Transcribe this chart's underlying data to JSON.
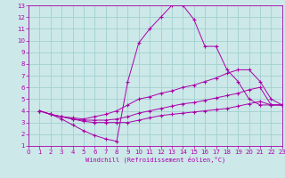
{
  "xlabel": "Windchill (Refroidissement éolien,°C)",
  "xlim": [
    0,
    23
  ],
  "ylim": [
    1,
    13
  ],
  "xticks": [
    0,
    1,
    2,
    3,
    4,
    5,
    6,
    7,
    8,
    9,
    10,
    11,
    12,
    13,
    14,
    15,
    16,
    17,
    18,
    19,
    20,
    21,
    22,
    23
  ],
  "yticks": [
    1,
    2,
    3,
    4,
    5,
    6,
    7,
    8,
    9,
    10,
    11,
    12,
    13
  ],
  "bg_color": "#cce8e8",
  "line_color": "#aa00aa",
  "grid_color": "#99cccc",
  "lines": [
    {
      "x": [
        1,
        2,
        3,
        4,
        5,
        6,
        7,
        8,
        9,
        10,
        11,
        12,
        13,
        14,
        15,
        16,
        17,
        18,
        19,
        20,
        21,
        22,
        23
      ],
      "y": [
        4.0,
        3.7,
        3.3,
        2.8,
        2.3,
        1.9,
        1.6,
        1.4,
        6.5,
        9.8,
        11.0,
        12.0,
        13.0,
        13.0,
        11.8,
        9.5,
        9.5,
        7.5,
        6.5,
        5.0,
        4.5,
        4.5,
        4.5
      ]
    },
    {
      "x": [
        1,
        2,
        3,
        4,
        5,
        6,
        7,
        8,
        9,
        10,
        11,
        12,
        13,
        14,
        15,
        16,
        17,
        18,
        19,
        20,
        21,
        22,
        23
      ],
      "y": [
        4.0,
        3.7,
        3.5,
        3.4,
        3.3,
        3.5,
        3.7,
        4.0,
        4.5,
        5.0,
        5.2,
        5.5,
        5.7,
        6.0,
        6.2,
        6.5,
        6.8,
        7.2,
        7.5,
        7.5,
        6.5,
        5.0,
        4.5
      ]
    },
    {
      "x": [
        1,
        2,
        3,
        4,
        5,
        6,
        7,
        8,
        9,
        10,
        11,
        12,
        13,
        14,
        15,
        16,
        17,
        18,
        19,
        20,
        21,
        22,
        23
      ],
      "y": [
        4.0,
        3.7,
        3.5,
        3.3,
        3.2,
        3.2,
        3.2,
        3.3,
        3.5,
        3.8,
        4.0,
        4.2,
        4.4,
        4.6,
        4.7,
        4.9,
        5.1,
        5.3,
        5.5,
        5.8,
        6.0,
        4.5,
        4.5
      ]
    },
    {
      "x": [
        1,
        2,
        3,
        4,
        5,
        6,
        7,
        8,
        9,
        10,
        11,
        12,
        13,
        14,
        15,
        16,
        17,
        18,
        19,
        20,
        21,
        22,
        23
      ],
      "y": [
        4.0,
        3.7,
        3.5,
        3.3,
        3.1,
        3.0,
        3.0,
        3.0,
        3.0,
        3.2,
        3.4,
        3.6,
        3.7,
        3.8,
        3.9,
        4.0,
        4.1,
        4.2,
        4.4,
        4.6,
        4.8,
        4.5,
        4.5
      ]
    }
  ]
}
